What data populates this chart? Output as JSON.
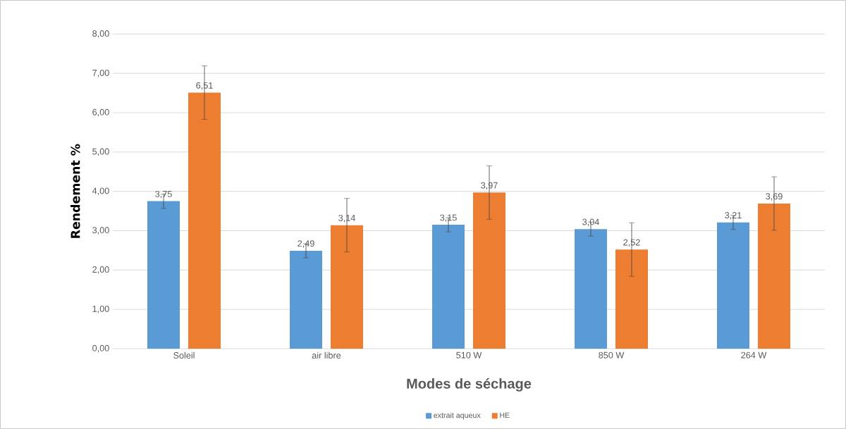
{
  "chart_data": {
    "type": "bar",
    "xlabel": "Modes de séchage",
    "ylabel": "Rendement %",
    "categories": [
      "Soleil",
      "air libre",
      "510 W",
      "850 W",
      "264 W"
    ],
    "series": [
      {
        "name": "extrait aqueux",
        "color": "#5b9bd5",
        "values": [
          3.75,
          2.49,
          3.15,
          3.04,
          3.21
        ],
        "errors": [
          0.18,
          0.18,
          0.18,
          0.18,
          0.18
        ],
        "value_labels": [
          "3,75",
          "2,49",
          "3,15",
          "3,04",
          "3,21"
        ]
      },
      {
        "name": "HE",
        "color": "#ed7d31",
        "values": [
          6.51,
          3.14,
          3.97,
          2.52,
          3.69
        ],
        "errors": [
          0.68,
          0.68,
          0.68,
          0.68,
          0.68
        ],
        "value_labels": [
          "6,51",
          "3,14",
          "3,97",
          "2,52",
          "3,69"
        ]
      }
    ],
    "ylim": [
      0,
      8
    ],
    "yticks": [
      {
        "value": 0,
        "label": "0,00"
      },
      {
        "value": 1,
        "label": "1,00"
      },
      {
        "value": 2,
        "label": "2,00"
      },
      {
        "value": 3,
        "label": "3,00"
      },
      {
        "value": 4,
        "label": "4,00"
      },
      {
        "value": 5,
        "label": "5,00"
      },
      {
        "value": 6,
        "label": "6,00"
      },
      {
        "value": 7,
        "label": "7,00"
      },
      {
        "value": 8,
        "label": "8,00"
      }
    ],
    "grid": "y",
    "legend": "bottom"
  }
}
